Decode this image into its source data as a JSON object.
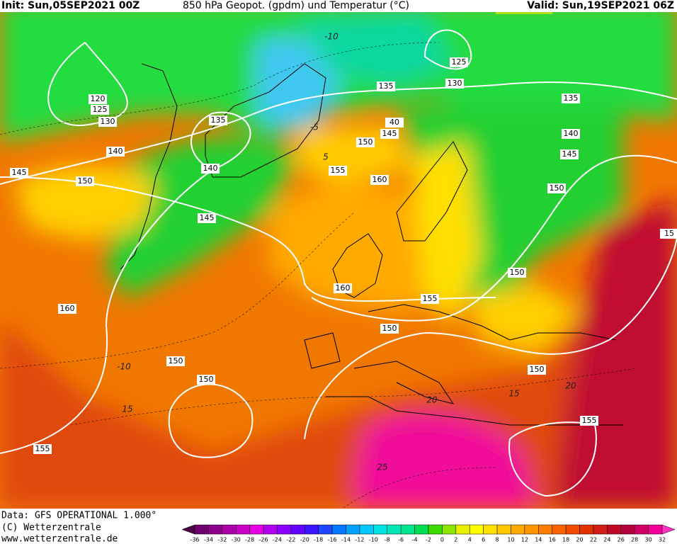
{
  "header": {
    "init": "Init: Sun,05SEP2021 00Z",
    "title": "850 hPa Geopot. (gpdm) und Temperatur (°C)",
    "valid": "Valid: Sun,19SEP2021 06Z"
  },
  "footer": {
    "data": "Data: GFS OPERATIONAL 1.000°",
    "copyright": "(C) Wetterzentrale",
    "url": "www.wetterzentrale.de"
  },
  "geopotential_labels": [
    "120",
    "125",
    "130",
    "135",
    "140",
    "145",
    "150",
    "140",
    "145",
    "160",
    "150",
    "150",
    "155",
    "135",
    "130",
    "125",
    "135",
    "140",
    "145",
    "150",
    "40",
    "145",
    "150",
    "155",
    "160",
    "160",
    "155",
    "150",
    "150",
    "150",
    "155",
    "15"
  ],
  "temperature_labels": [
    "-10",
    "-5",
    "5",
    "-10",
    "15",
    "20",
    "15",
    "20",
    "25"
  ],
  "colorbar": {
    "ticks": [
      "-36",
      "-34",
      "-32",
      "-30",
      "-28",
      "-26",
      "-24",
      "-22",
      "-20",
      "-18",
      "-16",
      "-14",
      "-12",
      "-10",
      "-8",
      "-6",
      "-4",
      "-2",
      "0",
      "2",
      "4",
      "6",
      "8",
      "10",
      "12",
      "14",
      "16",
      "18",
      "20",
      "22",
      "24",
      "26",
      "28",
      "30",
      "32"
    ],
    "colors": [
      "#4b004b",
      "#6e006e",
      "#8c008c",
      "#aa00aa",
      "#c800c8",
      "#e600e6",
      "#b400f0",
      "#8c00ff",
      "#6400ff",
      "#3c14ff",
      "#1e46ff",
      "#0078ff",
      "#00a0ff",
      "#00c8ff",
      "#00e1e1",
      "#00e6b4",
      "#00e68c",
      "#00dc50",
      "#3cdc00",
      "#8ce600",
      "#e6f000",
      "#ffff00",
      "#ffe100",
      "#ffc800",
      "#ffaa00",
      "#ff9600",
      "#ff7d00",
      "#fa6400",
      "#f04b00",
      "#e13200",
      "#d21e14",
      "#be0a28",
      "#b4003c",
      "#d20064",
      "#f00096",
      "#ff32c8"
    ]
  }
}
